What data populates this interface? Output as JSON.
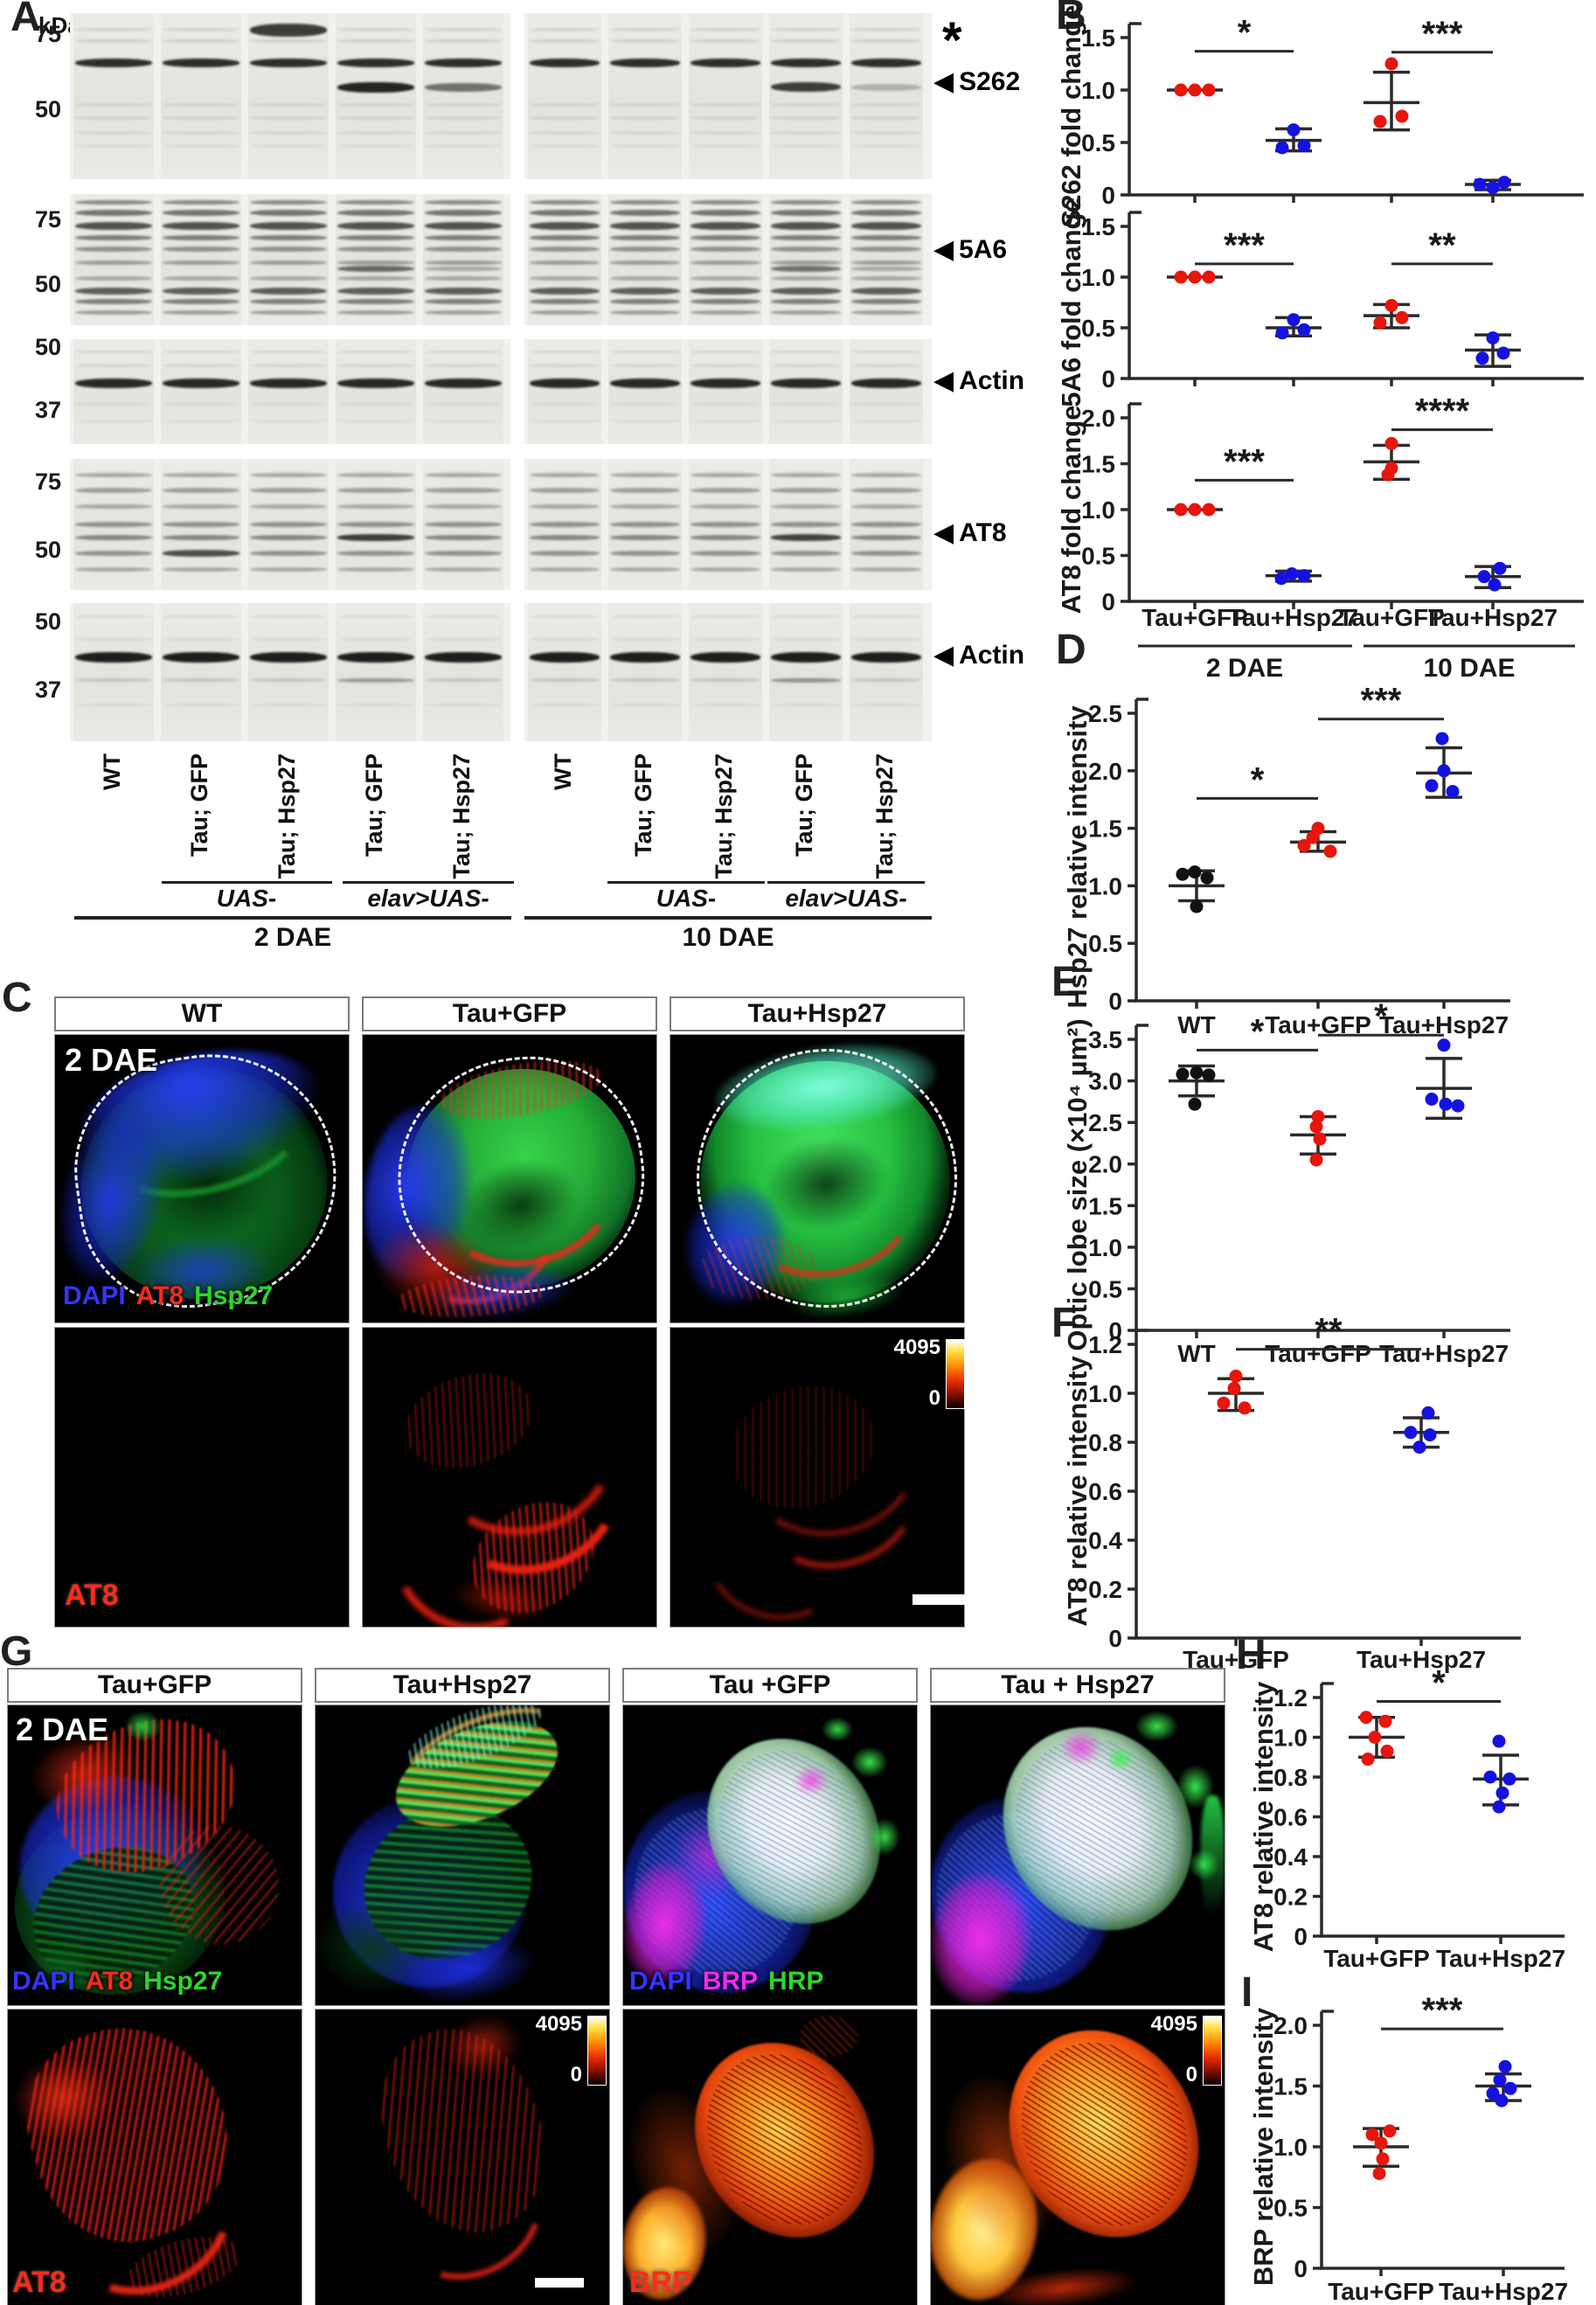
{
  "panels": {
    "a": "A",
    "b": "B",
    "c": "C",
    "d": "D",
    "e": "E",
    "f": "F",
    "g": "G",
    "h": "H",
    "i": "I"
  },
  "panel_a": {
    "kda_label": "kDa",
    "strips": [
      {
        "name": "S262 blot",
        "markers": [
          "75",
          "50"
        ],
        "arrow_label": "S262",
        "star_label": "*"
      },
      {
        "name": "5A6 blot",
        "markers": [
          "75",
          "50"
        ],
        "arrow_label": "5A6"
      },
      {
        "name": "Actin blot",
        "markers": [
          "50",
          "37"
        ],
        "arrow_label": "Actin"
      },
      {
        "name": "AT8 blot",
        "markers": [
          "75",
          "50"
        ],
        "arrow_label": "AT8"
      },
      {
        "name": "Actin blot",
        "markers": [
          "50",
          "37"
        ],
        "arrow_label": "Actin"
      }
    ],
    "lane_labels": [
      "WT",
      "Tau; GFP",
      "Tau; Hsp27",
      "Tau; GFP",
      "Tau; Hsp27",
      "WT",
      "Tau; GFP",
      "Tau; Hsp27",
      "Tau; GFP",
      "Tau; Hsp27"
    ],
    "genotype_labels": [
      "UAS-",
      "elav>UAS-",
      "UAS-",
      "elav>UAS-"
    ],
    "time_labels": [
      "2 DAE",
      "10 DAE"
    ]
  },
  "panel_c": {
    "headers": [
      "WT",
      "Tau+GFP",
      "Tau+Hsp27"
    ],
    "time_label": "2 DAE",
    "channels": [
      {
        "text": "DAPI",
        "color": "#3535ff"
      },
      {
        "text": "AT8",
        "color": "#ff2a1a"
      },
      {
        "text": "Hsp27",
        "color": "#2bd62b"
      }
    ],
    "row2_label": {
      "text": "AT8",
      "color": "#ff2a1a"
    },
    "colorbar": {
      "max": "4095",
      "min": "0"
    }
  },
  "panel_g": {
    "headers": [
      "Tau+GFP",
      "Tau+Hsp27",
      "Tau +GFP",
      "Tau + Hsp27"
    ],
    "time_label": "2 DAE",
    "channels_left": [
      {
        "text": "DAPI",
        "color": "#3535ff"
      },
      {
        "text": "AT8",
        "color": "#ff2a1a"
      },
      {
        "text": "Hsp27",
        "color": "#2bd62b"
      }
    ],
    "channels_right": [
      {
        "text": "DAPI",
        "color": "#3535ff"
      },
      {
        "text": "BRP",
        "color": "#f02af0"
      },
      {
        "text": "HRP",
        "color": "#2bd62b"
      }
    ],
    "row2_labels": [
      {
        "text": "AT8",
        "color": "#ff2a1a"
      },
      {
        "text": "BRP",
        "color": "#ff2a1a"
      }
    ],
    "colorbar": {
      "max": "4095",
      "min": "0"
    }
  },
  "chart_data": [
    {
      "id": "b1",
      "type": "scatter",
      "ylabel": "S262 fold change",
      "ylim": [
        0,
        1.5
      ],
      "yticks": [
        0,
        0.5,
        1,
        1.5
      ],
      "groups": [
        {
          "label": "Tau+GFP",
          "time": "2 DAE",
          "color": "#e8150c",
          "values": [
            1.0,
            1.0,
            1.0
          ],
          "mean": 1.0,
          "err": null,
          "dx": [
            -16,
            0,
            16
          ]
        },
        {
          "label": "Tau+Hsp27",
          "time": "2 DAE",
          "color": "#1512e0",
          "values": [
            0.62,
            0.45,
            0.47
          ],
          "mean": 0.52,
          "err": [
            0.42,
            0.63
          ],
          "dx": [
            0,
            -13,
            12
          ]
        },
        {
          "label": "Tau+GFP",
          "time": "10 DAE",
          "color": "#e8150c",
          "values": [
            1.25,
            0.7,
            0.75
          ],
          "mean": 0.88,
          "err": [
            0.62,
            1.17
          ],
          "dx": [
            0,
            -13,
            12
          ]
        },
        {
          "label": "Tau+Hsp27",
          "time": "10 DAE",
          "color": "#1512e0",
          "values": [
            0.1,
            0.07,
            0.12
          ],
          "mean": 0.1,
          "err": [
            0.05,
            0.14
          ],
          "dx": [
            -15,
            0,
            13
          ]
        }
      ],
      "significance": [
        {
          "from": 0,
          "to": 1,
          "label": "*",
          "y": 1.37
        },
        {
          "from": 2,
          "to": 3,
          "label": "***",
          "y": 1.36
        }
      ]
    },
    {
      "id": "b2",
      "type": "scatter",
      "ylabel": "5A6 fold change",
      "ylim": [
        0,
        1.5
      ],
      "yticks": [
        0,
        0.5,
        1,
        1.5
      ],
      "groups": [
        {
          "label": "Tau+GFP",
          "time": "2 DAE",
          "color": "#e8150c",
          "values": [
            1.0,
            1.0,
            1.0
          ],
          "mean": 1.0,
          "err": null,
          "dx": [
            -16,
            0,
            16
          ]
        },
        {
          "label": "Tau+Hsp27",
          "time": "2 DAE",
          "color": "#1512e0",
          "values": [
            0.58,
            0.45,
            0.48
          ],
          "mean": 0.5,
          "err": [
            0.42,
            0.6
          ],
          "dx": [
            0,
            -13,
            12
          ]
        },
        {
          "label": "Tau+GFP",
          "time": "10 DAE",
          "color": "#e8150c",
          "values": [
            0.72,
            0.55,
            0.6
          ],
          "mean": 0.62,
          "err": [
            0.5,
            0.73
          ],
          "dx": [
            0,
            -13,
            12
          ]
        },
        {
          "label": "Tau+Hsp27",
          "time": "10 DAE",
          "color": "#1512e0",
          "values": [
            0.4,
            0.2,
            0.25
          ],
          "mean": 0.28,
          "err": [
            0.12,
            0.43
          ],
          "dx": [
            0,
            -12,
            12
          ]
        }
      ],
      "significance": [
        {
          "from": 0,
          "to": 1,
          "label": "***",
          "y": 1.13
        },
        {
          "from": 2,
          "to": 3,
          "label": "**",
          "y": 1.13
        }
      ]
    },
    {
      "id": "b3",
      "type": "scatter",
      "ylabel": "AT8 fold change",
      "ylim": [
        0,
        2
      ],
      "yticks": [
        0,
        0.5,
        1,
        1.5,
        2
      ],
      "xlabels": [
        "Tau+GFP",
        "Tau+Hsp27",
        "Tau+GFP",
        "Tau+Hsp27"
      ],
      "sublabels": [
        "2 DAE",
        "10 DAE"
      ],
      "groups": [
        {
          "label": "Tau+GFP",
          "time": "2 DAE",
          "color": "#e8150c",
          "values": [
            1.0,
            1.0,
            1.0
          ],
          "mean": 1.0,
          "err": null,
          "dx": [
            -16,
            0,
            16
          ]
        },
        {
          "label": "Tau+Hsp27",
          "time": "2 DAE",
          "color": "#1512e0",
          "values": [
            0.3,
            0.25,
            0.28
          ],
          "mean": 0.28,
          "err": [
            0.22,
            0.33
          ],
          "dx": [
            -2,
            -14,
            12
          ]
        },
        {
          "label": "Tau+GFP",
          "time": "10 DAE",
          "color": "#e8150c",
          "values": [
            1.72,
            1.45,
            1.38
          ],
          "mean": 1.52,
          "err": [
            1.33,
            1.7
          ],
          "dx": [
            0,
            0,
            -4
          ]
        },
        {
          "label": "Tau+Hsp27",
          "time": "10 DAE",
          "color": "#1512e0",
          "values": [
            0.36,
            0.27,
            0.18
          ],
          "mean": 0.27,
          "err": [
            0.15,
            0.38
          ],
          "dx": [
            8,
            -10,
            2
          ]
        }
      ],
      "significance": [
        {
          "from": 0,
          "to": 1,
          "label": "***",
          "y": 1.32
        },
        {
          "from": 2,
          "to": 3,
          "label": "****",
          "y": 1.87
        }
      ]
    },
    {
      "id": "d",
      "type": "scatter",
      "ylabel": "Hsp27 relative intensity",
      "ylim": [
        0,
        2.5
      ],
      "yticks": [
        0,
        0.5,
        1,
        1.5,
        2,
        2.5
      ],
      "xlabels": [
        "WT",
        "Tau+GFP",
        "Tau+Hsp27"
      ],
      "groups": [
        {
          "label": "WT",
          "color": "#111111",
          "values": [
            1.1,
            1.12,
            1.07,
            0.82
          ],
          "mean": 1.0,
          "err": [
            0.87,
            1.13
          ],
          "dx": [
            -16,
            -2,
            12,
            0
          ]
        },
        {
          "label": "Tau+GFP",
          "color": "#e8150c",
          "values": [
            1.5,
            1.42,
            1.35,
            1.3
          ],
          "mean": 1.38,
          "err": [
            1.3,
            1.47
          ],
          "dx": [
            0,
            -6,
            -16,
            14
          ]
        },
        {
          "label": "Tau+Hsp27",
          "color": "#1512e0",
          "values": [
            2.28,
            2.0,
            1.87,
            1.82
          ],
          "mean": 1.98,
          "err": [
            1.77,
            2.2
          ],
          "dx": [
            -2,
            0,
            -14,
            10
          ]
        }
      ],
      "significance": [
        {
          "from": 0,
          "to": 1,
          "label": "*",
          "y": 1.76
        },
        {
          "from": 1,
          "to": 2,
          "label": "***",
          "y": 2.45
        }
      ]
    },
    {
      "id": "e",
      "type": "scatter",
      "ylabel": "Optic lobe size (×10⁴ µm²)",
      "ylim": [
        0,
        3.5
      ],
      "yticks": [
        0,
        0.5,
        1,
        1.5,
        2,
        2.5,
        3,
        3.5
      ],
      "xlabels": [
        "WT",
        "Tau+GFP",
        "Tau+Hsp27"
      ],
      "groups": [
        {
          "label": "WT",
          "color": "#111111",
          "values": [
            3.08,
            3.1,
            3.07,
            2.72
          ],
          "mean": 3.0,
          "err": [
            2.82,
            3.18
          ],
          "dx": [
            -16,
            0,
            14,
            -2
          ]
        },
        {
          "label": "Tau+GFP",
          "color": "#e8150c",
          "values": [
            2.57,
            2.45,
            2.3,
            2.05
          ],
          "mean": 2.35,
          "err": [
            2.12,
            2.57
          ],
          "dx": [
            0,
            -2,
            2,
            -2
          ]
        },
        {
          "label": "Tau+Hsp27",
          "color": "#1512e0",
          "values": [
            3.43,
            2.78,
            2.72,
            2.7
          ],
          "mean": 2.91,
          "err": [
            2.55,
            3.27
          ],
          "dx": [
            0,
            -14,
            2,
            16
          ]
        }
      ],
      "significance": [
        {
          "from": 0,
          "to": 1,
          "label": "*",
          "y": 3.37
        },
        {
          "from": 1,
          "to": 2,
          "label": "*",
          "y": 3.55
        }
      ]
    },
    {
      "id": "f",
      "type": "scatter",
      "ylabel": "AT8 relative intensity",
      "ylim": [
        0,
        1.2
      ],
      "yticks": [
        0,
        0.2,
        0.4,
        0.6,
        0.8,
        1,
        1.2
      ],
      "xlabels": [
        "Tau+GFP",
        "Tau+Hsp27"
      ],
      "groups": [
        {
          "label": "Tau+GFP",
          "color": "#e8150c",
          "values": [
            1.07,
            1.02,
            0.96,
            0.94
          ],
          "mean": 1.0,
          "err": [
            0.93,
            1.06
          ],
          "dx": [
            0,
            -2,
            -14,
            10
          ]
        },
        {
          "label": "Tau+Hsp27",
          "color": "#1512e0",
          "values": [
            0.92,
            0.84,
            0.83,
            0.78
          ],
          "mean": 0.84,
          "err": [
            0.78,
            0.9
          ],
          "dx": [
            8,
            -12,
            10,
            -2
          ]
        }
      ],
      "significance": [
        {
          "from": 0,
          "to": 1,
          "label": "**",
          "y": 1.18
        }
      ]
    },
    {
      "id": "h",
      "type": "scatter",
      "ylabel": "AT8 relative intensity",
      "ylim": [
        0,
        1.2
      ],
      "yticks": [
        0,
        0.2,
        0.4,
        0.6,
        0.8,
        1,
        1.2
      ],
      "xlabels": [
        "Tau+GFP",
        "Tau+Hsp27"
      ],
      "groups": [
        {
          "label": "Tau+GFP",
          "color": "#e8150c",
          "values": [
            1.1,
            1.08,
            1.0,
            0.93,
            0.89
          ],
          "mean": 1.0,
          "err": [
            0.9,
            1.1
          ],
          "dx": [
            -12,
            10,
            -2,
            12,
            -10
          ]
        },
        {
          "label": "Tau+Hsp27",
          "color": "#1512e0",
          "values": [
            0.98,
            0.8,
            0.79,
            0.72,
            0.65
          ],
          "mean": 0.79,
          "err": [
            0.66,
            0.91
          ],
          "dx": [
            -2,
            -12,
            10,
            2,
            -2
          ]
        }
      ],
      "significance": [
        {
          "from": 0,
          "to": 1,
          "label": "*",
          "y": 1.18
        }
      ]
    },
    {
      "id": "i",
      "type": "scatter",
      "ylabel": "BRP relative intensity",
      "ylim": [
        0,
        2
      ],
      "yticks": [
        0,
        0.5,
        1,
        1.5,
        2
      ],
      "xlabels": [
        "Tau+GFP",
        "Tau+Hsp27"
      ],
      "groups": [
        {
          "label": "Tau+GFP",
          "color": "#e8150c",
          "values": [
            1.13,
            1.1,
            1.03,
            0.9,
            0.78
          ],
          "mean": 1.0,
          "err": [
            0.84,
            1.15
          ],
          "dx": [
            10,
            -10,
            0,
            2,
            -2
          ]
        },
        {
          "label": "Tau+Hsp27",
          "color": "#1512e0",
          "values": [
            1.66,
            1.55,
            1.48,
            1.44,
            1.38
          ],
          "mean": 1.5,
          "err": [
            1.38,
            1.6
          ],
          "dx": [
            2,
            -4,
            8,
            -12,
            -2
          ]
        }
      ],
      "significance": [
        {
          "from": 0,
          "to": 1,
          "label": "***",
          "y": 1.97
        }
      ]
    }
  ]
}
